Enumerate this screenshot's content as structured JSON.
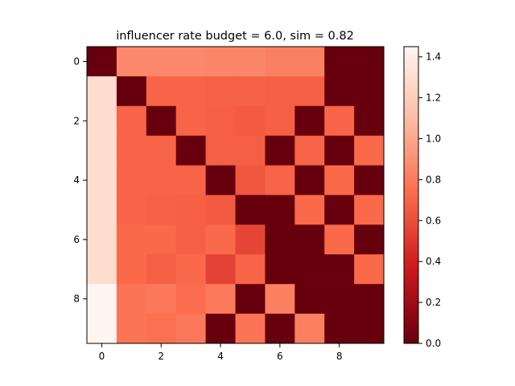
{
  "chart_data": {
    "type": "heatmap",
    "title": "influencer rate budget = 6.0, sim = 0.82",
    "xlabel": "",
    "ylabel": "",
    "x_ticks": [
      0,
      2,
      4,
      6,
      8
    ],
    "y_ticks": [
      0,
      2,
      4,
      6,
      8
    ],
    "colormap": "Reds_r",
    "vmin": 0.0,
    "vmax": 1.45,
    "colorbar_ticks": [
      "0.0",
      "0.2",
      "0.4",
      "0.6",
      "0.8",
      "1.0",
      "1.2",
      "1.4"
    ],
    "matrix": [
      [
        0.0,
        0.86,
        0.86,
        0.86,
        0.85,
        0.85,
        0.82,
        0.82,
        0.0,
        0.0
      ],
      [
        1.3,
        0.0,
        0.7,
        0.7,
        0.69,
        0.69,
        0.68,
        0.68,
        0.0,
        0.0
      ],
      [
        1.3,
        0.7,
        0.0,
        0.7,
        0.68,
        0.66,
        0.68,
        0.0,
        0.7,
        0.0
      ],
      [
        1.3,
        0.7,
        0.7,
        0.0,
        0.68,
        0.68,
        0.0,
        0.7,
        0.0,
        0.72
      ],
      [
        1.3,
        0.7,
        0.7,
        0.7,
        0.0,
        0.64,
        0.7,
        0.0,
        0.72,
        0.0
      ],
      [
        1.3,
        0.7,
        0.69,
        0.68,
        0.66,
        0.0,
        0.0,
        0.72,
        0.0,
        0.72
      ],
      [
        1.3,
        0.72,
        0.72,
        0.68,
        0.72,
        0.56,
        0.0,
        0.0,
        0.72,
        0.0
      ],
      [
        1.3,
        0.72,
        0.68,
        0.72,
        0.55,
        0.7,
        0.0,
        0.0,
        0.0,
        0.72
      ],
      [
        1.45,
        0.77,
        0.79,
        0.74,
        0.8,
        0.0,
        0.82,
        0.0,
        0.0,
        0.0
      ],
      [
        1.45,
        0.77,
        0.75,
        0.79,
        0.0,
        0.77,
        0.0,
        0.82,
        0.0,
        0.0
      ]
    ]
  }
}
